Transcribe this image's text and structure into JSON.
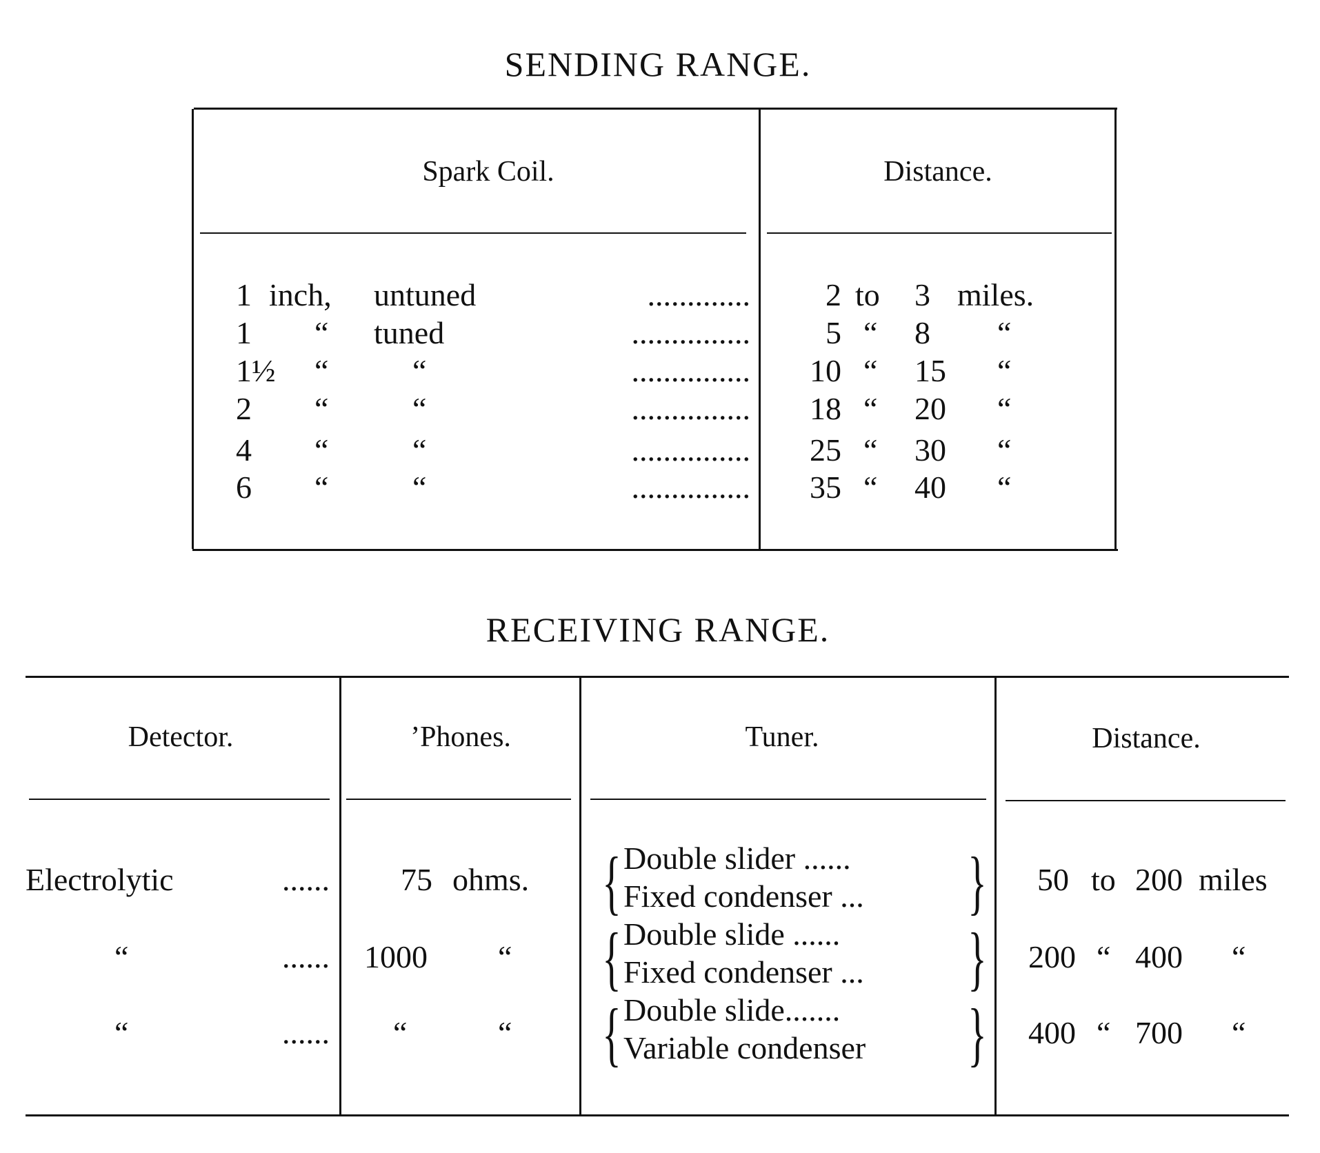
{
  "sending": {
    "title": "SENDING RANGE.",
    "headers": [
      "Spark Coil.",
      "Distance."
    ],
    "rows": [
      {
        "size": "1",
        "unit": "inch,",
        "type": "untuned",
        "leader": ".............",
        "from": "2",
        "sep": "to",
        "to": "3",
        "dunit": "miles."
      },
      {
        "size": "1",
        "unit": "“",
        "type": "tuned",
        "leader": "...............",
        "from": "5",
        "sep": "“",
        "to": "8",
        "dunit": "“"
      },
      {
        "size": "1½",
        "unit": "“",
        "type": "“",
        "leader": "...............",
        "from": "10",
        "sep": "“",
        "to": "15",
        "dunit": "“"
      },
      {
        "size": "2",
        "unit": "“",
        "type": "“",
        "leader": "...............",
        "from": "18",
        "sep": "“",
        "to": "20",
        "dunit": "“"
      },
      {
        "size": "4",
        "unit": "“",
        "type": "“",
        "leader": "...............",
        "from": "25",
        "sep": "“",
        "to": "30",
        "dunit": "“"
      },
      {
        "size": "6",
        "unit": "“",
        "type": "“",
        "leader": "...............",
        "from": "35",
        "sep": "“",
        "to": "40",
        "dunit": "“"
      }
    ]
  },
  "receiving": {
    "title": "RECEIVING RANGE.",
    "headers": [
      "Detector.",
      "’Phones.",
      "Tuner.",
      "Distance."
    ],
    "rows": [
      {
        "detector": "Electrolytic",
        "dleader": "......",
        "phones": "75",
        "punit": "ohms.",
        "tuner": [
          "Double slider ......",
          "Fixed condenser ..."
        ],
        "from": "50",
        "sep": "to",
        "to": "200",
        "dunit": "miles"
      },
      {
        "detector": "“",
        "dleader": "......",
        "phones": "1000",
        "punit": "“",
        "tuner": [
          "Double slide ......",
          "Fixed condenser ..."
        ],
        "from": "200",
        "sep": "“",
        "to": "400",
        "dunit": "“"
      },
      {
        "detector": "“",
        "dleader": "......",
        "phones": "“",
        "punit": "“",
        "tuner": [
          "Double slide.......",
          "Variable condenser"
        ],
        "from": "400",
        "sep": "“",
        "to": "700",
        "dunit": "“"
      }
    ]
  }
}
